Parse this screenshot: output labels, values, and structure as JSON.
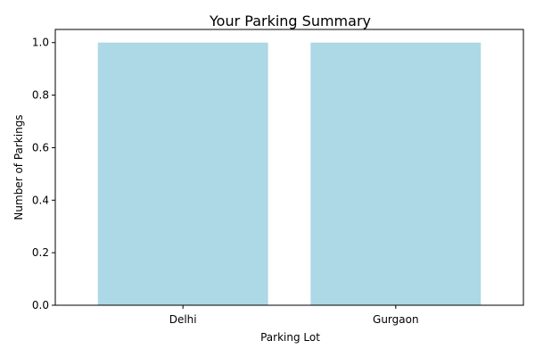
{
  "chart_data": {
    "type": "bar",
    "title": "Your Parking Summary",
    "xlabel": "Parking Lot",
    "ylabel": "Number of Parkings",
    "categories": [
      "Delhi",
      "Gurgaon"
    ],
    "values": [
      1,
      1
    ],
    "ylim": [
      0,
      1.05
    ],
    "yticks": [
      "0.0",
      "0.2",
      "0.4",
      "0.6",
      "0.8",
      "1.0"
    ],
    "bar_color": "#add8e6",
    "grid": false,
    "legend": "none"
  }
}
